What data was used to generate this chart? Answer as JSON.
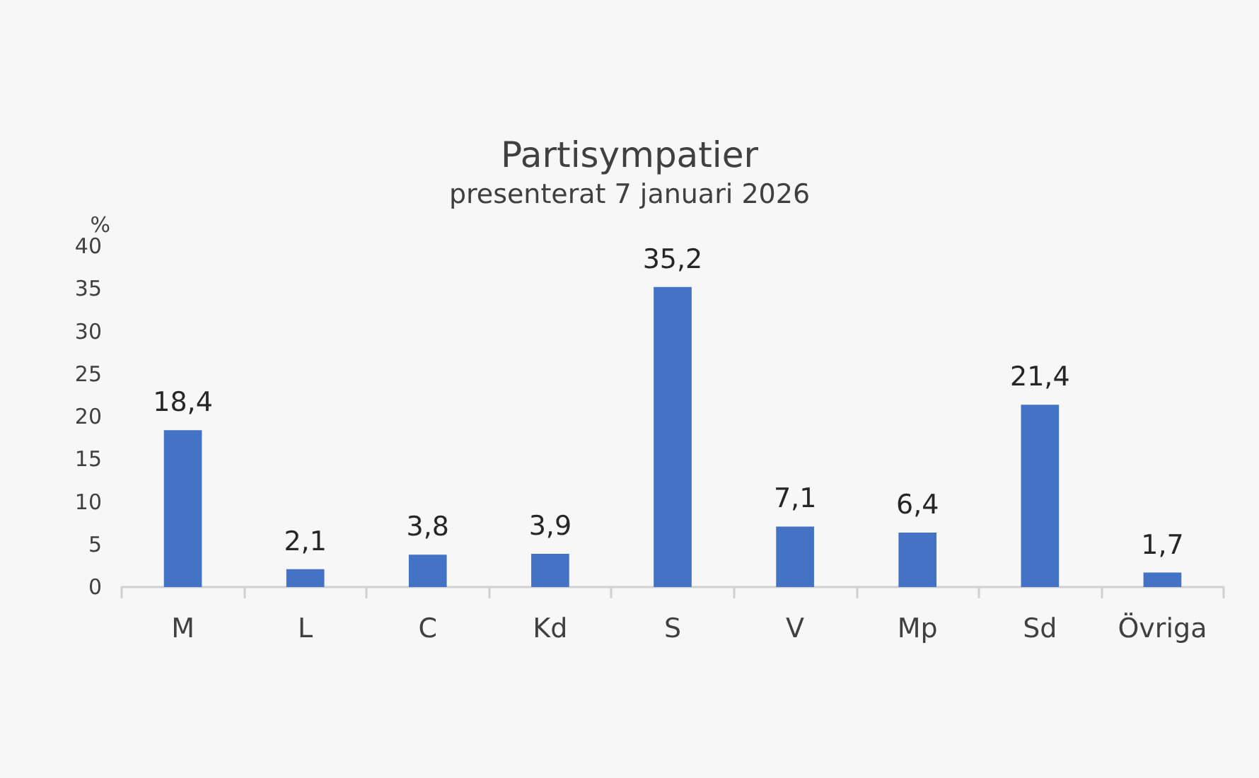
{
  "chart_data": {
    "type": "bar",
    "title": "Partisympatier",
    "subtitle": "presenterat 7 januari 2026",
    "ylabel": "%",
    "categories": [
      "M",
      "L",
      "C",
      "Kd",
      "S",
      "V",
      "Mp",
      "Sd",
      "Övriga"
    ],
    "values": [
      18.4,
      2.1,
      3.8,
      3.9,
      35.2,
      7.1,
      6.4,
      21.4,
      1.7
    ],
    "value_labels": [
      "18,4",
      "2,1",
      "3,8",
      "3,9",
      "35,2",
      "7,1",
      "6,4",
      "21,4",
      "1,7"
    ],
    "color": "#4472c4",
    "ylim": [
      0,
      40
    ],
    "yticks": [
      0,
      5,
      10,
      15,
      20,
      25,
      30,
      35,
      40
    ],
    "grid": false
  }
}
